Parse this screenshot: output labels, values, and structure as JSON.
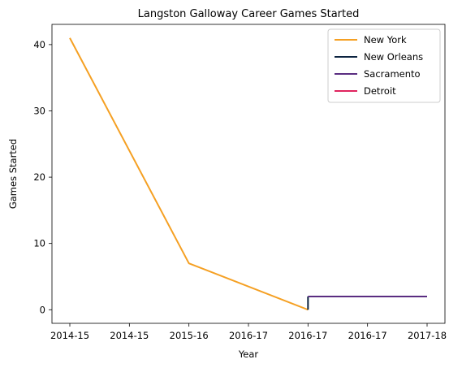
{
  "chart_data": {
    "type": "line",
    "title": "Langston Galloway Career Games Started",
    "xlabel": "Year",
    "ylabel": "Games Started",
    "x_ticks": [
      {
        "pos": 0,
        "label": "2014-15"
      },
      {
        "pos": 1,
        "label": "2014-15"
      },
      {
        "pos": 2,
        "label": "2015-16"
      },
      {
        "pos": 3,
        "label": "2016-17"
      },
      {
        "pos": 4,
        "label": "2016-17"
      },
      {
        "pos": 5,
        "label": "2016-17"
      },
      {
        "pos": 6,
        "label": "2017-18"
      }
    ],
    "y_ticks": [
      0,
      10,
      20,
      30,
      40
    ],
    "xlim": [
      -0.3,
      6.3
    ],
    "ylim": [
      -2.05,
      43.05
    ],
    "grid": false,
    "legend_position": "top-right",
    "series": [
      {
        "name": "New York",
        "color": "#F5A023",
        "points": [
          [
            0,
            41
          ],
          [
            2,
            7
          ],
          [
            4,
            0
          ]
        ]
      },
      {
        "name": "New Orleans",
        "color": "#0C2340",
        "points": [
          [
            4,
            0
          ],
          [
            4,
            2
          ]
        ]
      },
      {
        "name": "Sacramento",
        "color": "#5A2D81",
        "points": [
          [
            4,
            2
          ],
          [
            6,
            2
          ]
        ]
      },
      {
        "name": "Detroit",
        "color": "#E0245E",
        "points": []
      }
    ]
  }
}
